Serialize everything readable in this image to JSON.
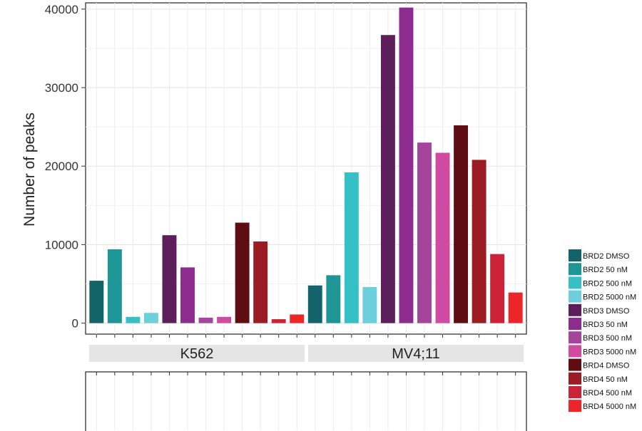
{
  "chart_data": {
    "type": "bar",
    "ylabel": "Number of peaks",
    "xlabel": "",
    "ylim": [
      -1400,
      40800
    ],
    "yticks": [
      0,
      10000,
      20000,
      30000,
      40000
    ],
    "grid": true,
    "legend_position": "right",
    "facets": [
      "K562",
      "MV4;11"
    ],
    "categories": [
      "BRD2 DMSO",
      "BRD2 50 nM",
      "BRD2 500 nM",
      "BRD2 5000 nM",
      "BRD3 DMSO",
      "BRD3 50 nM",
      "BRD3 500 nM",
      "BRD3 5000 nM",
      "BRD4 DMSO",
      "BRD4 50 nM",
      "BRD4 500 nM",
      "BRD4 5000 nM"
    ],
    "colors": [
      "#12636a",
      "#1e9696",
      "#34c0c4",
      "#6dcedc",
      "#5c1f5c",
      "#8e2b8e",
      "#a5449d",
      "#cf4aa0",
      "#5e0e12",
      "#9b1c22",
      "#cb2238",
      "#ec2528"
    ],
    "series": [
      {
        "name": "K562",
        "values": [
          5400,
          9400,
          800,
          1300,
          11200,
          7100,
          700,
          800,
          12800,
          10400,
          500,
          1100
        ]
      },
      {
        "name": "MV4;11",
        "values": [
          4800,
          6100,
          19200,
          4600,
          36700,
          40200,
          23000,
          21700,
          25200,
          20800,
          8800,
          3900
        ]
      }
    ]
  }
}
